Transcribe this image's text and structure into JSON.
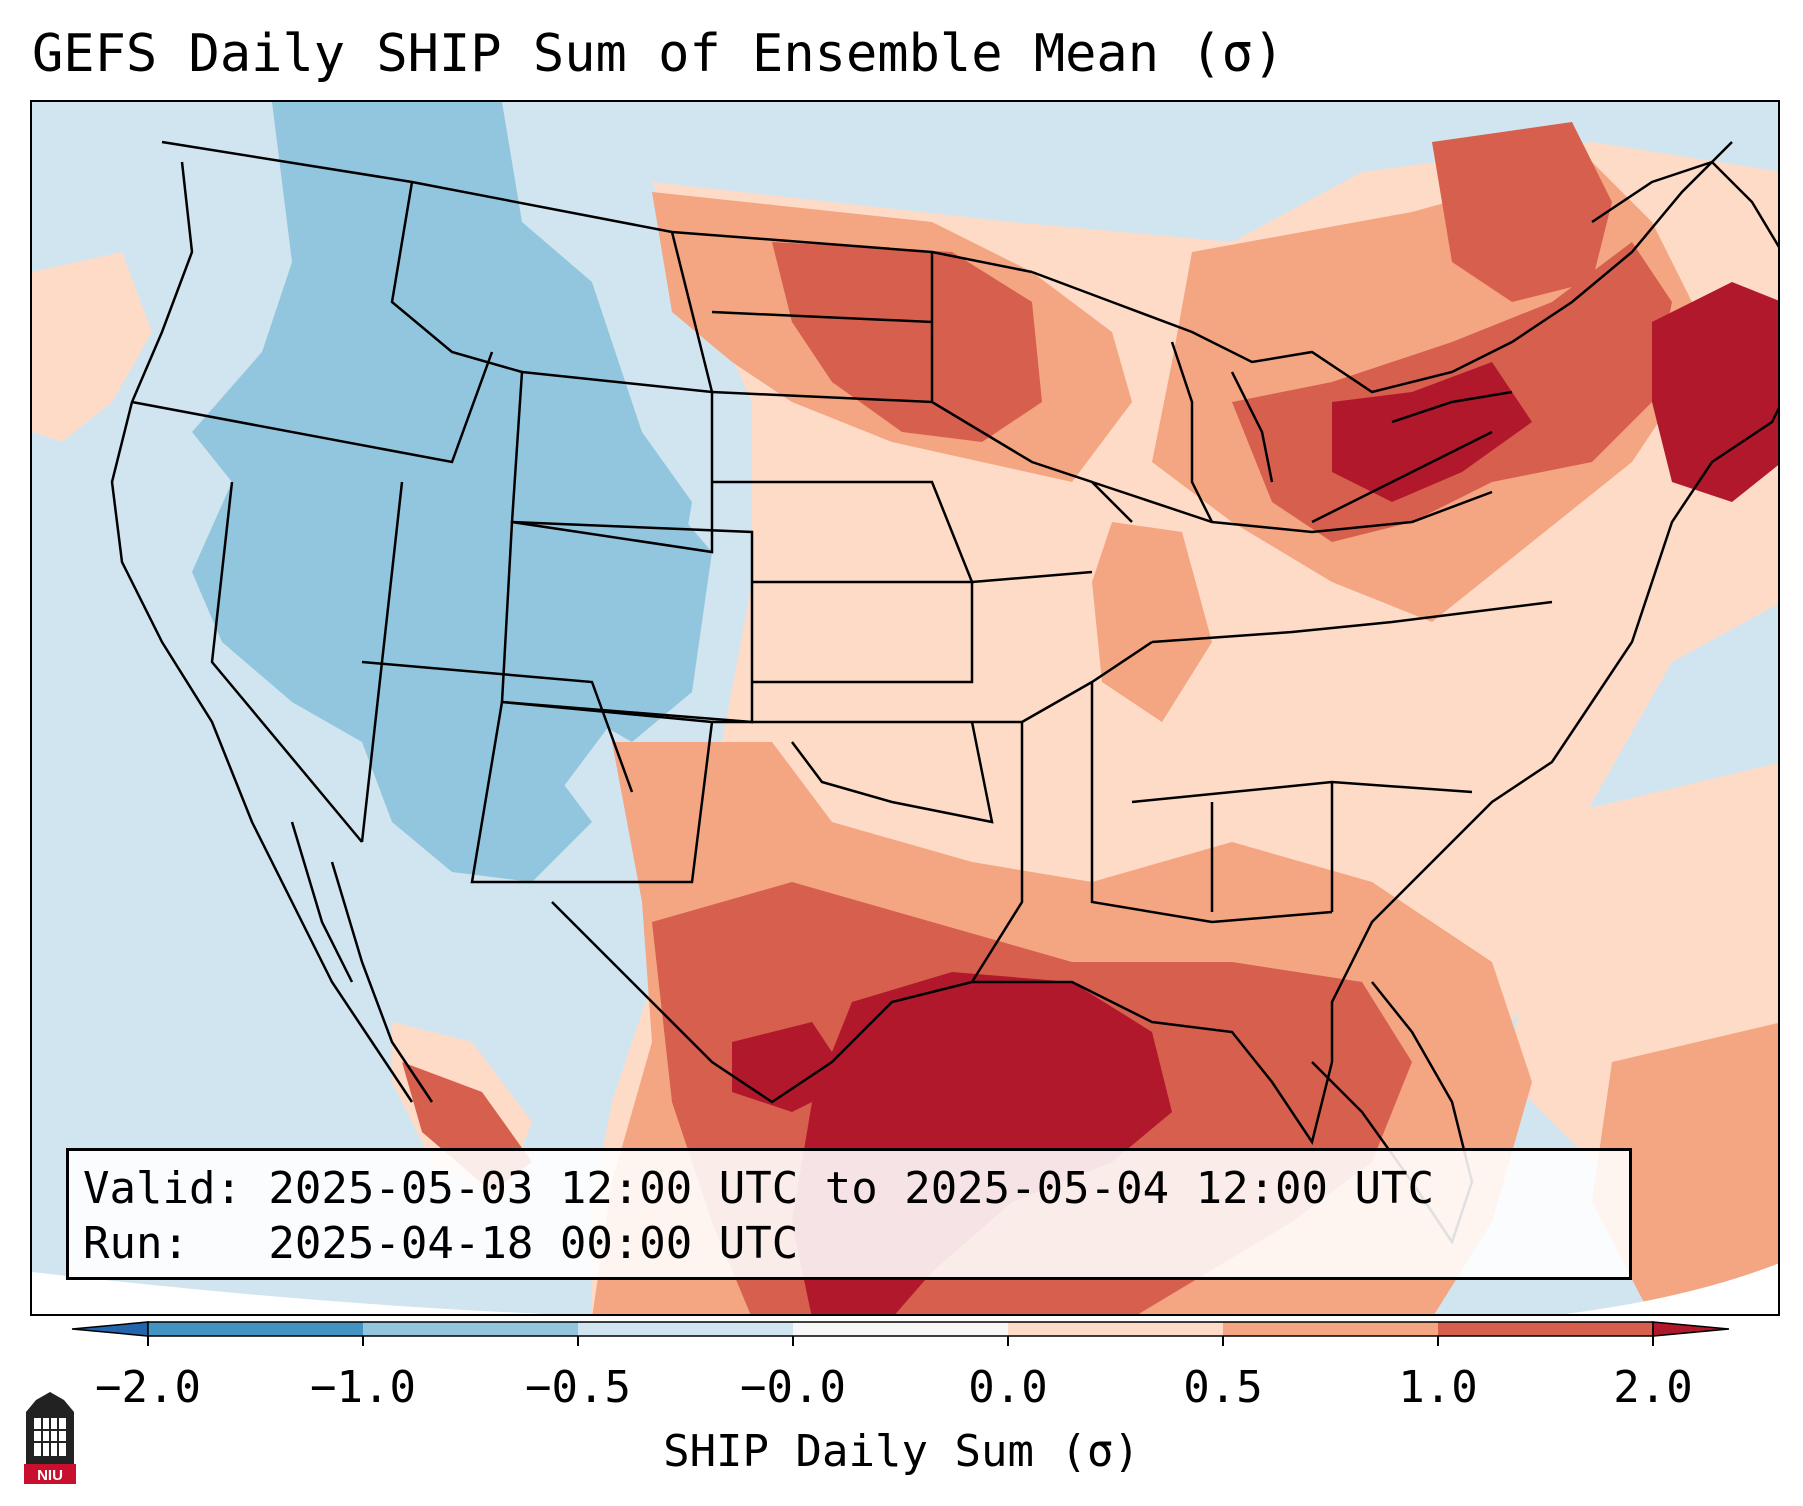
{
  "title": "GEFS Daily SHIP Sum of Ensemble Mean (σ)",
  "info": {
    "valid_line": "Valid: 2025-05-03 12:00 UTC to 2025-05-04 12:00 UTC",
    "run_line": "Run:   2025-04-18 00:00 UTC"
  },
  "colorbar": {
    "label": "SHIP Daily Sum (σ)",
    "ticks": [
      "−2.0",
      "−1.0",
      "−0.5",
      "−0.0",
      "0.0",
      "0.5",
      "1.0",
      "2.0"
    ],
    "colors": [
      "#4393c3",
      "#92c5de",
      "#d1e5f0",
      "#f7f7f7",
      "#fddbc7",
      "#f4a582",
      "#d6604d",
      "#b2182b"
    ],
    "under_color": "#2166ac",
    "over_color": "#67001f"
  },
  "logo": {
    "icon": "niu-logo-icon",
    "text": "NIU"
  }
}
